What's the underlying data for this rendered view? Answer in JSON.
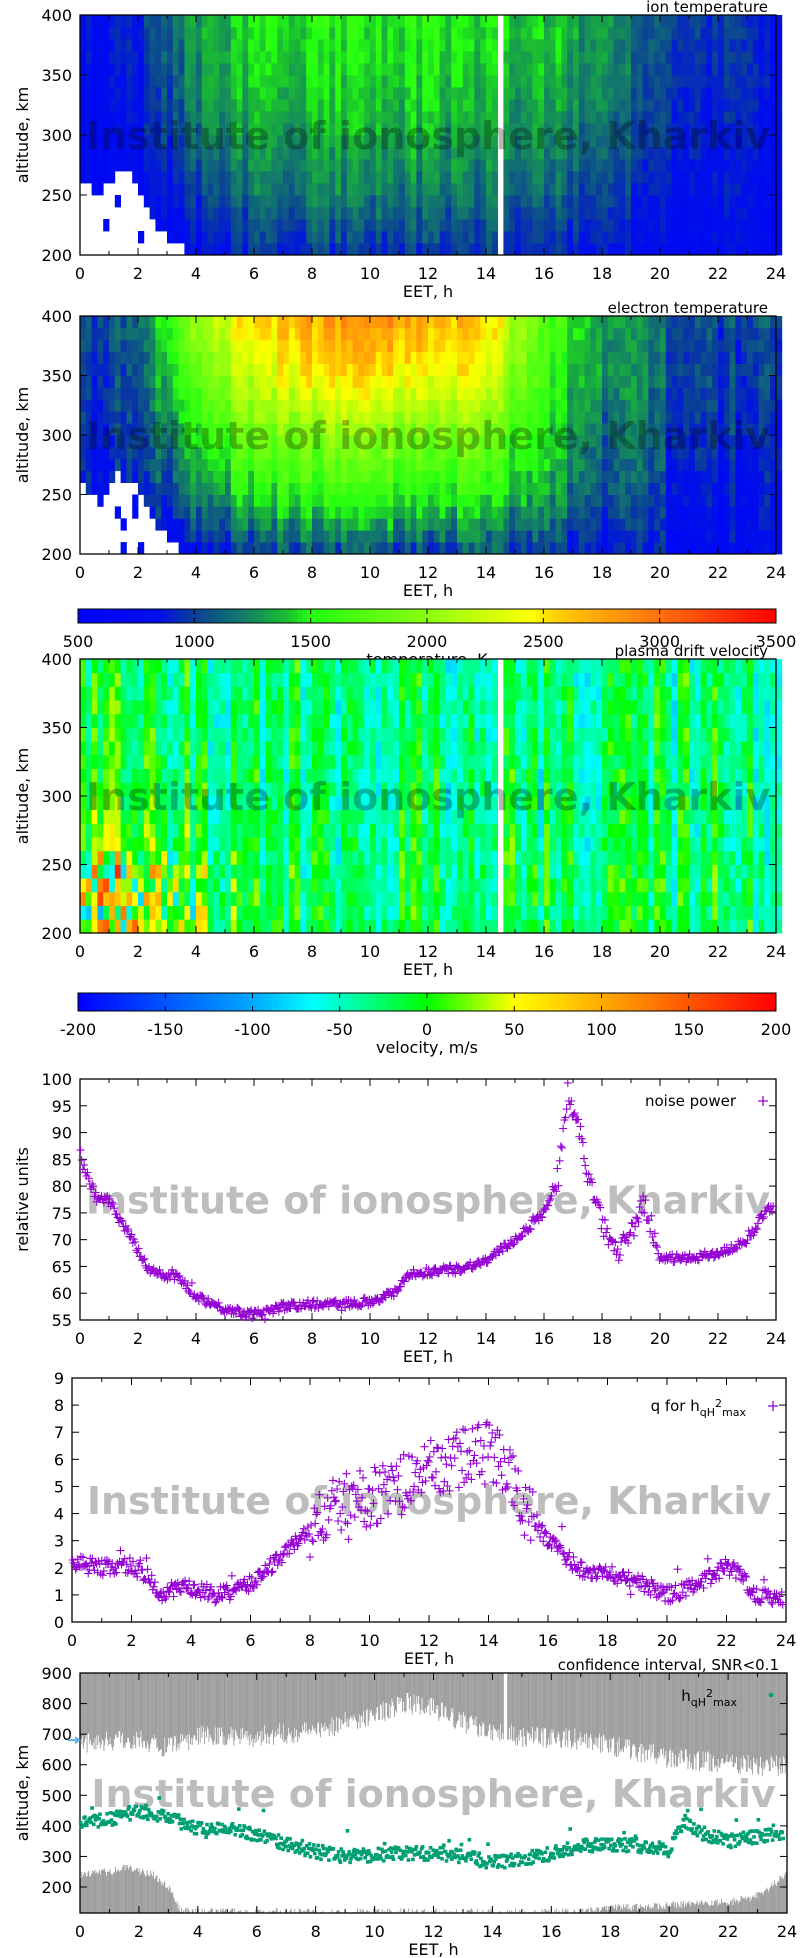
{
  "watermark": "Institute of ionosphere, Kharkiv",
  "chart_data": [
    {
      "type": "heatmap",
      "title": "ion temperature",
      "xlabel": "EET, h",
      "ylabel": "altitude, km",
      "xlim": [
        0,
        24
      ],
      "ylim": [
        200,
        400
      ],
      "x_ticks": [
        "0",
        "2",
        "4",
        "6",
        "8",
        "10",
        "12",
        "14",
        "16",
        "18",
        "20",
        "22",
        "24"
      ],
      "y_ticks": [
        "200",
        "250",
        "300",
        "350",
        "400"
      ],
      "colorbar": "temperature, K",
      "grid_times_h": [
        0,
        2,
        4,
        6,
        8,
        10,
        12,
        14,
        16,
        18,
        20,
        22,
        24
      ],
      "grid_altitudes_km": [
        200,
        250,
        300,
        350,
        400
      ],
      "values_K": [
        [
          700,
          700,
          750,
          900,
          950,
          950,
          950,
          950,
          900,
          850,
          800,
          750,
          700
        ],
        [
          700,
          750,
          950,
          1150,
          1200,
          1200,
          1200,
          1150,
          1100,
          1000,
          900,
          800,
          750
        ],
        [
          750,
          800,
          1150,
          1300,
          1350,
          1350,
          1350,
          1300,
          1250,
          1150,
          1000,
          850,
          800
        ],
        [
          800,
          850,
          1250,
          1400,
          1450,
          1450,
          1450,
          1400,
          1350,
          1250,
          1050,
          900,
          850
        ],
        [
          800,
          900,
          1300,
          1450,
          1500,
          1500,
          1500,
          1450,
          1400,
          1300,
          1100,
          950,
          850
        ]
      ],
      "no_data_below_km": [
        [
          0,
          265
        ],
        [
          0.6,
          250
        ],
        [
          1.2,
          270
        ],
        [
          1.8,
          268
        ],
        [
          2.2,
          240
        ],
        [
          2.6,
          225
        ],
        [
          3,
          212
        ],
        [
          3.6,
          205
        ],
        [
          4,
          200
        ]
      ],
      "data_gaps_h": [
        14.5
      ]
    },
    {
      "type": "heatmap",
      "title": "electron temperature",
      "xlabel": "EET, h",
      "ylabel": "altitude, km",
      "xlim": [
        0,
        24
      ],
      "ylim": [
        200,
        400
      ],
      "x_ticks": [
        "0",
        "2",
        "4",
        "6",
        "8",
        "10",
        "12",
        "14",
        "16",
        "18",
        "20",
        "22",
        "24"
      ],
      "y_ticks": [
        "200",
        "250",
        "300",
        "350",
        "400"
      ],
      "colorbar": "temperature, K",
      "grid_times_h": [
        0,
        2,
        4,
        6,
        8,
        10,
        12,
        14,
        16,
        18,
        20,
        22,
        24
      ],
      "grid_altitudes_km": [
        200,
        250,
        300,
        350,
        400
      ],
      "values_K": [
        [
          750,
          750,
          850,
          950,
          1000,
          1000,
          1000,
          1000,
          950,
          850,
          800,
          750,
          750
        ],
        [
          800,
          850,
          1250,
          1450,
          1550,
          1550,
          1550,
          1500,
          1300,
          1050,
          950,
          850,
          800
        ],
        [
          900,
          950,
          1550,
          1850,
          1950,
          1950,
          1950,
          1850,
          1450,
          1150,
          1050,
          950,
          900
        ],
        [
          950,
          1000,
          1850,
          2250,
          2450,
          2500,
          2450,
          2300,
          1600,
          1250,
          1100,
          1000,
          950
        ],
        [
          1000,
          1100,
          2100,
          2550,
          2750,
          2800,
          2750,
          2550,
          1700,
          1300,
          1150,
          1050,
          1000
        ]
      ],
      "no_data_below_km": [
        [
          0,
          262
        ],
        [
          0.6,
          245
        ],
        [
          1.2,
          268
        ],
        [
          1.8,
          262
        ],
        [
          2.2,
          238
        ],
        [
          2.6,
          222
        ],
        [
          3,
          210
        ],
        [
          3.6,
          204
        ],
        [
          4,
          200
        ]
      ],
      "data_gaps_h": []
    },
    {
      "type": "colorbar",
      "label": "temperature, K",
      "range": [
        500,
        3500
      ],
      "ticks": [
        "500",
        "1000",
        "1500",
        "2000",
        "2500",
        "3000",
        "3500"
      ],
      "colors": [
        [
          500,
          "#0000ff"
        ],
        [
          850,
          "#0010e8"
        ],
        [
          1000,
          "#0a3f98"
        ],
        [
          1200,
          "#137a6a"
        ],
        [
          1400,
          "#1bbf30"
        ],
        [
          1500,
          "#22ff10"
        ],
        [
          2000,
          "#8cff10"
        ],
        [
          2450,
          "#ffff00"
        ],
        [
          2550,
          "#ffd000"
        ],
        [
          3000,
          "#ff7010"
        ],
        [
          3500,
          "#ff0000"
        ]
      ]
    },
    {
      "type": "heatmap",
      "title": "plasma drift velocity",
      "xlabel": "EET, h",
      "ylabel": "altitude, km",
      "xlim": [
        0,
        24
      ],
      "ylim": [
        200,
        400
      ],
      "x_ticks": [
        "0",
        "2",
        "4",
        "6",
        "8",
        "10",
        "12",
        "14",
        "16",
        "18",
        "20",
        "22",
        "24"
      ],
      "y_ticks": [
        "200",
        "250",
        "300",
        "350",
        "400"
      ],
      "colorbar": "velocity, m/s",
      "grid_times_h": [
        0,
        2,
        4,
        6,
        8,
        10,
        12,
        14,
        16,
        18,
        20,
        22,
        24
      ],
      "grid_altitudes_km": [
        200,
        250,
        300,
        350,
        400
      ],
      "values_m_s": [
        [
          30,
          40,
          20,
          -10,
          -20,
          -20,
          -20,
          -20,
          -20,
          -20,
          -20,
          -20,
          -20
        ],
        [
          20,
          20,
          0,
          -20,
          -25,
          -25,
          -20,
          -20,
          -20,
          -25,
          -25,
          -25,
          -25
        ],
        [
          -10,
          -10,
          -20,
          -25,
          -30,
          -30,
          -25,
          -25,
          -25,
          -30,
          -30,
          -30,
          -30
        ],
        [
          -20,
          -20,
          -25,
          -30,
          -30,
          -30,
          -30,
          -30,
          -30,
          -30,
          -30,
          -30,
          -30
        ],
        [
          -20,
          -20,
          -25,
          -30,
          -30,
          -30,
          -30,
          -30,
          -30,
          -30,
          -30,
          -30,
          -30
        ]
      ],
      "no_data_below_km": [],
      "data_gaps_h": [
        14.5
      ]
    },
    {
      "type": "colorbar",
      "label": "velocity, m/s",
      "range": [
        -200,
        200
      ],
      "ticks": [
        "-200",
        "-150",
        "-100",
        "-50",
        "0",
        "50",
        "100",
        "150",
        "200"
      ],
      "colors": [
        [
          -200,
          "#0000ff"
        ],
        [
          -100,
          "#00a8ff"
        ],
        [
          -65,
          "#00ffff"
        ],
        [
          0,
          "#00ff00"
        ],
        [
          50,
          "#ffff00"
        ],
        [
          110,
          "#ff9a00"
        ],
        [
          200,
          "#ff0000"
        ]
      ]
    },
    {
      "type": "scatter",
      "legend": {
        "text": "noise power"
      },
      "legend_position": "top-right",
      "xlabel": "EET, h",
      "ylabel": "relative units",
      "xlim": [
        0,
        24
      ],
      "ylim": [
        55,
        100
      ],
      "x_ticks": [
        "0",
        "2",
        "4",
        "6",
        "8",
        "10",
        "12",
        "14",
        "16",
        "18",
        "20",
        "22",
        "24"
      ],
      "y_ticks": [
        "55",
        "60",
        "65",
        "70",
        "75",
        "80",
        "85",
        "90",
        "95",
        "100"
      ],
      "color": "#9400d3",
      "marker": "plus",
      "curve": [
        [
          0,
          85
        ],
        [
          0.4,
          80
        ],
        [
          0.6,
          77.5
        ],
        [
          1,
          77.5
        ],
        [
          1.3,
          74
        ],
        [
          1.7,
          71
        ],
        [
          2,
          68
        ],
        [
          2.4,
          64.5
        ],
        [
          3,
          63
        ],
        [
          3.4,
          63
        ],
        [
          4,
          59.5
        ],
        [
          5,
          57
        ],
        [
          6,
          56
        ],
        [
          7,
          57.5
        ],
        [
          8,
          58
        ],
        [
          9,
          58
        ],
        [
          10,
          58.5
        ],
        [
          10.8,
          60
        ],
        [
          11.3,
          63.5
        ],
        [
          12,
          64
        ],
        [
          13,
          64.5
        ],
        [
          14,
          66
        ],
        [
          15,
          70
        ],
        [
          16,
          75
        ],
        [
          16.5,
          82
        ],
        [
          16.8,
          96
        ],
        [
          17.2,
          91
        ],
        [
          17.6,
          80
        ],
        [
          18,
          73
        ],
        [
          18.5,
          67.5
        ],
        [
          19,
          71
        ],
        [
          19.4,
          77
        ],
        [
          19.8,
          71
        ],
        [
          20,
          66.5
        ],
        [
          21,
          66.5
        ],
        [
          22,
          67.5
        ],
        [
          23,
          69.5
        ],
        [
          23.7,
          76
        ]
      ]
    },
    {
      "type": "scatter",
      "legend": {
        "text": "q for h",
        "sub": "qH",
        "sup": "2",
        "sub2": "max"
      },
      "legend_position": "top-right",
      "xlabel": "EET, h",
      "ylabel": "",
      "xlim": [
        0,
        24
      ],
      "ylim": [
        0,
        9
      ],
      "x_ticks": [
        "0",
        "2",
        "4",
        "6",
        "8",
        "10",
        "12",
        "14",
        "16",
        "18",
        "20",
        "22",
        "24"
      ],
      "y_ticks": [
        "0",
        "1",
        "2",
        "3",
        "4",
        "5",
        "6",
        "7",
        "8",
        "9"
      ],
      "color": "#9400d3",
      "marker": "plus",
      "curve": [
        [
          0,
          2.2
        ],
        [
          1,
          2
        ],
        [
          2,
          2.1
        ],
        [
          2.6,
          1.6
        ],
        [
          3,
          0.9
        ],
        [
          3.5,
          1.3
        ],
        [
          4,
          1.2
        ],
        [
          5,
          1
        ],
        [
          6,
          1.4
        ],
        [
          7,
          2.4
        ],
        [
          8,
          3.4
        ],
        [
          9,
          4.4
        ],
        [
          10,
          4.6
        ],
        [
          11,
          5
        ],
        [
          12,
          5.6
        ],
        [
          13,
          6
        ],
        [
          14,
          6.4
        ],
        [
          14.6,
          5.8
        ],
        [
          15,
          4.6
        ],
        [
          16,
          3
        ],
        [
          17,
          2
        ],
        [
          18,
          1.8
        ],
        [
          19,
          1.5
        ],
        [
          20,
          1
        ],
        [
          21,
          1.3
        ],
        [
          22,
          2.1
        ],
        [
          22.5,
          1.7
        ],
        [
          23,
          1
        ],
        [
          24,
          0.9
        ]
      ]
    },
    {
      "type": "scatter",
      "title": "confidence interval, SNR<0.1",
      "legend": {
        "text": "h",
        "sub": "qH",
        "sup": "2",
        "sub2": "max"
      },
      "legend_position": "top-right",
      "xlabel": "EET, h",
      "ylabel": "altitude, km",
      "xlim": [
        0,
        24
      ],
      "ylim": [
        115,
        900
      ],
      "x_ticks": [
        "0",
        "2",
        "4",
        "6",
        "8",
        "10",
        "12",
        "14",
        "16",
        "18",
        "20",
        "22",
        "24"
      ],
      "y_ticks": [
        "200",
        "300",
        "400",
        "500",
        "600",
        "700",
        "800",
        "900"
      ],
      "color": "#009e73",
      "band_color": "#999999",
      "marker": "dot",
      "curve": [
        [
          0,
          410
        ],
        [
          1,
          420
        ],
        [
          2,
          450
        ],
        [
          3,
          430
        ],
        [
          4,
          390
        ],
        [
          5,
          400
        ],
        [
          6,
          370
        ],
        [
          7,
          340
        ],
        [
          8,
          315
        ],
        [
          9,
          300
        ],
        [
          10,
          305
        ],
        [
          11,
          310
        ],
        [
          12,
          310
        ],
        [
          13,
          300
        ],
        [
          14,
          280
        ],
        [
          15,
          290
        ],
        [
          16,
          310
        ],
        [
          17,
          335
        ],
        [
          18,
          340
        ],
        [
          19,
          335
        ],
        [
          20,
          320
        ],
        [
          20.5,
          420
        ],
        [
          21,
          380
        ],
        [
          22,
          350
        ],
        [
          23,
          365
        ],
        [
          24,
          380
        ]
      ],
      "confidence_upper_lower_edge_km": [
        [
          0,
          680
        ],
        [
          2,
          690
        ],
        [
          3,
          660
        ],
        [
          4,
          700
        ],
        [
          6,
          700
        ],
        [
          8,
          720
        ],
        [
          10,
          770
        ],
        [
          11,
          810
        ],
        [
          12,
          790
        ],
        [
          13,
          745
        ],
        [
          14,
          720
        ],
        [
          15,
          700
        ],
        [
          17,
          690
        ],
        [
          18,
          670
        ],
        [
          20,
          630
        ],
        [
          22,
          610
        ],
        [
          24,
          600
        ]
      ],
      "confidence_lower_upper_edge_km": [
        [
          0,
          240
        ],
        [
          1,
          250
        ],
        [
          1.6,
          262
        ],
        [
          2.5,
          240
        ],
        [
          3,
          200
        ],
        [
          3.4,
          125
        ],
        [
          4,
          118
        ],
        [
          17,
          118
        ],
        [
          18,
          130
        ],
        [
          20,
          140
        ],
        [
          22,
          150
        ],
        [
          23,
          170
        ],
        [
          24,
          240
        ]
      ],
      "marker_altitude_km": 680
    }
  ]
}
